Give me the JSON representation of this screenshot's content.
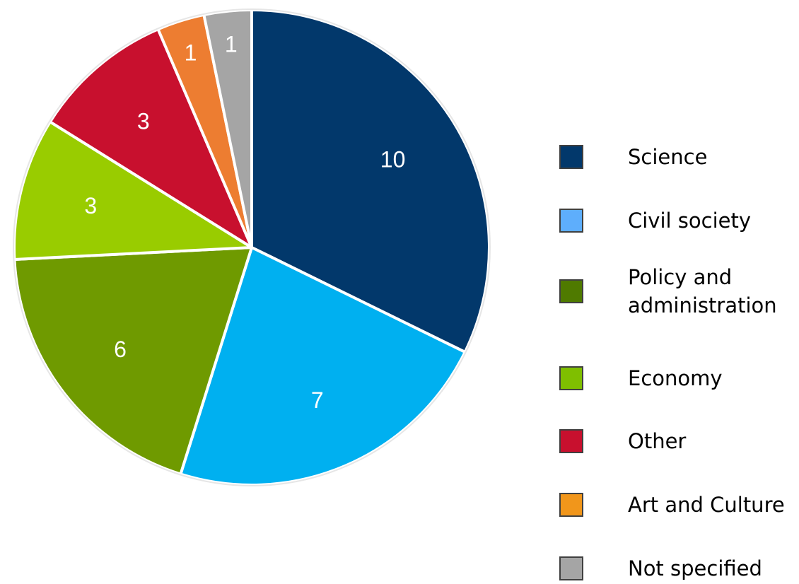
{
  "chart_data": {
    "type": "pie",
    "title": "",
    "start_angle_deg": 0,
    "direction": "clockwise",
    "slices": [
      {
        "label": "Science",
        "value": 10,
        "color": "#02386b"
      },
      {
        "label": "Civil society",
        "value": 7,
        "color": "#00b0f0"
      },
      {
        "label": "Policy and administration",
        "value": 6,
        "color": "#6f9a00"
      },
      {
        "label": "Economy",
        "value": 3,
        "color": "#99cc00"
      },
      {
        "label": "Other",
        "value": 3,
        "color": "#c8102e"
      },
      {
        "label": "Art and Culture",
        "value": 1,
        "color": "#ed7d31"
      },
      {
        "label": "Not specified",
        "value": 1,
        "color": "#a5a5a5"
      }
    ],
    "legend": {
      "position": "right",
      "items": [
        {
          "label_lines": [
            "Science"
          ],
          "swatch_color": "#02386b"
        },
        {
          "label_lines": [
            "Civil society"
          ],
          "swatch_color": "#5eaefc"
        },
        {
          "label_lines": [
            "Policy and",
            "administration"
          ],
          "swatch_color": "#4f7a00"
        },
        {
          "label_lines": [
            "Economy"
          ],
          "swatch_color": "#7fbf00"
        },
        {
          "label_lines": [
            "Other"
          ],
          "swatch_color": "#c8102e"
        },
        {
          "label_lines": [
            "Art and Culture"
          ],
          "swatch_color": "#f1961b"
        },
        {
          "label_lines": [
            "Not specified"
          ],
          "swatch_color": "#a5a5a5"
        }
      ]
    }
  }
}
